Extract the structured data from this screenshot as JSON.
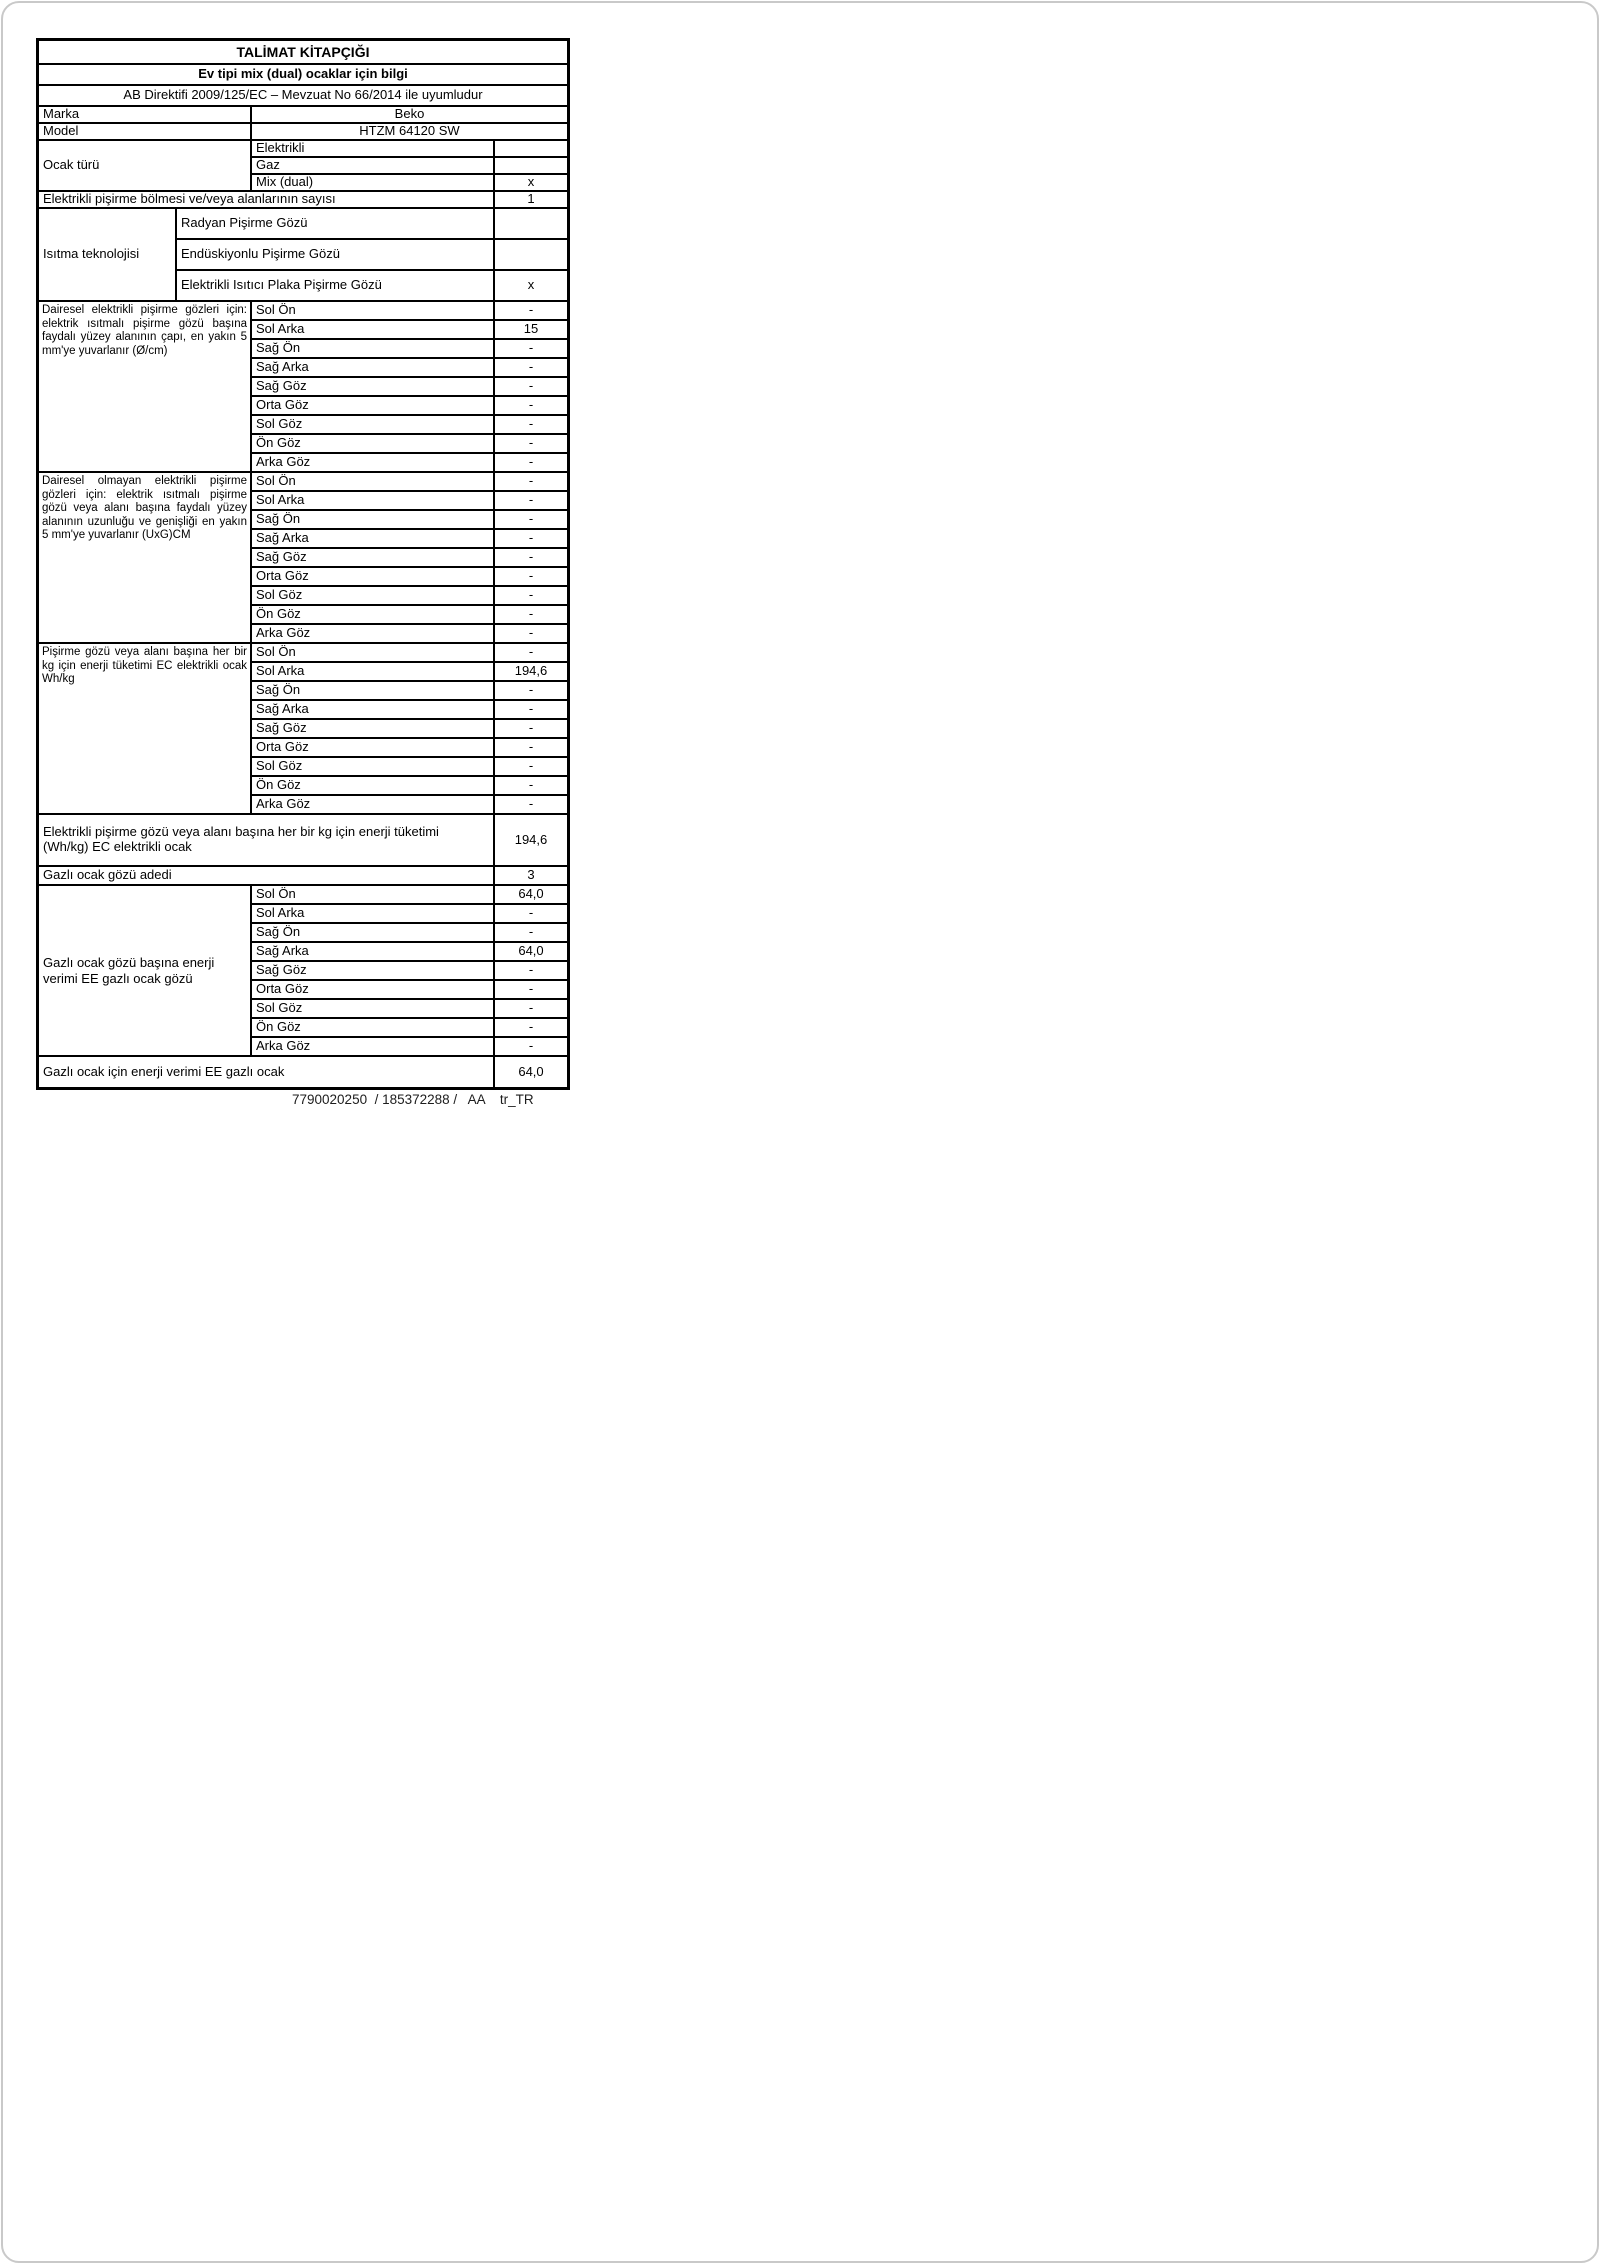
{
  "doc": {
    "title": "TALİMAT KİTAPÇIĞI",
    "subtitle": "Ev tipi mix (dual) ocaklar için bilgi",
    "directive": "AB Direktifi 2009/125/EC – Mevzuat No 66/2014 ile uyumludur",
    "brand": {
      "label": "Marka",
      "value": "Beko"
    },
    "model": {
      "label": "Model",
      "value": "HTZM 64120 SW"
    },
    "hob_type": {
      "label": "Ocak türü",
      "rows": [
        [
          "Elektrikli",
          ""
        ],
        [
          "Gaz",
          ""
        ],
        [
          "Mix (dual)",
          "x"
        ]
      ]
    },
    "electric_zone_count": {
      "label": "Elektrikli pişirme bölmesi ve/veya alanlarının sayısı",
      "value": "1"
    },
    "heating_tech": {
      "label": "Isıtma teknolojisi",
      "rows": [
        [
          "Radyan Pişirme Gözü",
          ""
        ],
        [
          "Endüskiyonlu Pişirme Gözü",
          ""
        ],
        [
          "Elektrikli Isıtıcı Plaka Pişirme Gözü",
          "x"
        ]
      ]
    },
    "circular": {
      "label": "Dairesel elektrikli pişirme gözleri için: elektrik ısıtmalı pişirme gözü başına faydalı yüzey alanının çapı, en yakın 5 mm'ye yuvarlanır (Ø/cm)",
      "rows": [
        [
          "Sol Ön",
          "-"
        ],
        [
          "Sol Arka",
          "15"
        ],
        [
          "Sağ Ön",
          "-"
        ],
        [
          "Sağ Arka",
          "-"
        ],
        [
          "Sağ Göz",
          "-"
        ],
        [
          "Orta Göz",
          "-"
        ],
        [
          "Sol Göz",
          "-"
        ],
        [
          "Ön Göz",
          "-"
        ],
        [
          "Arka Göz",
          "-"
        ]
      ]
    },
    "noncircular": {
      "label": "Dairesel olmayan elektrikli pişirme gözleri için: elektrik ısıtmalı pişirme gözü veya alanı başına faydalı yüzey alanının uzunluğu ve genişliği en yakın 5 mm'ye yuvarlanır (UxG)CM",
      "rows": [
        [
          "Sol Ön",
          "-"
        ],
        [
          "Sol Arka",
          "-"
        ],
        [
          "Sağ Ön",
          "-"
        ],
        [
          "Sağ Arka",
          "-"
        ],
        [
          "Sağ Göz",
          "-"
        ],
        [
          "Orta Göz",
          "-"
        ],
        [
          "Sol Göz",
          "-"
        ],
        [
          "Ön Göz",
          "-"
        ],
        [
          "Arka Göz",
          "-"
        ]
      ]
    },
    "energy_per_zone": {
      "label": "Pişirme gözü veya alanı başına her bir kg için enerji tüketimi EC elektrikli ocak Wh/kg",
      "rows": [
        [
          "Sol Ön",
          "-"
        ],
        [
          "Sol Arka",
          "194,6"
        ],
        [
          "Sağ Ön",
          "-"
        ],
        [
          "Sağ Arka",
          "-"
        ],
        [
          "Sağ Göz",
          "-"
        ],
        [
          "Orta Göz",
          "-"
        ],
        [
          "Sol Göz",
          "-"
        ],
        [
          "Ön Göz",
          "-"
        ],
        [
          "Arka Göz",
          "-"
        ]
      ]
    },
    "ec_total": {
      "label": "Elektrikli pişirme gözü veya alanı başına her bir kg için enerji tüketimi (Wh/kg) EC elektrikli ocak",
      "value": "194,6"
    },
    "gas_count": {
      "label": "Gazlı ocak gözü adedi",
      "value": "3"
    },
    "gas_group": {
      "label": "Gazlı ocak gözü başına enerji verimi EE gazlı ocak gözü",
      "rows": [
        [
          "Sol Ön",
          "64,0"
        ],
        [
          "Sol Arka",
          "-"
        ],
        [
          "Sağ Ön",
          "-"
        ],
        [
          "Sağ Arka",
          "64,0"
        ],
        [
          "Sağ Göz",
          "-"
        ],
        [
          "Orta Göz",
          "-"
        ],
        [
          "Sol Göz",
          "-"
        ],
        [
          "Ön Göz",
          "-"
        ],
        [
          "Arka Göz",
          "-"
        ]
      ]
    },
    "gas_total": {
      "label": "Gazlı ocak için enerji verimi EE gazlı ocak",
      "value": "64,0"
    },
    "footer": "7790020250  / 185372288 /   AA    tr_TR"
  }
}
